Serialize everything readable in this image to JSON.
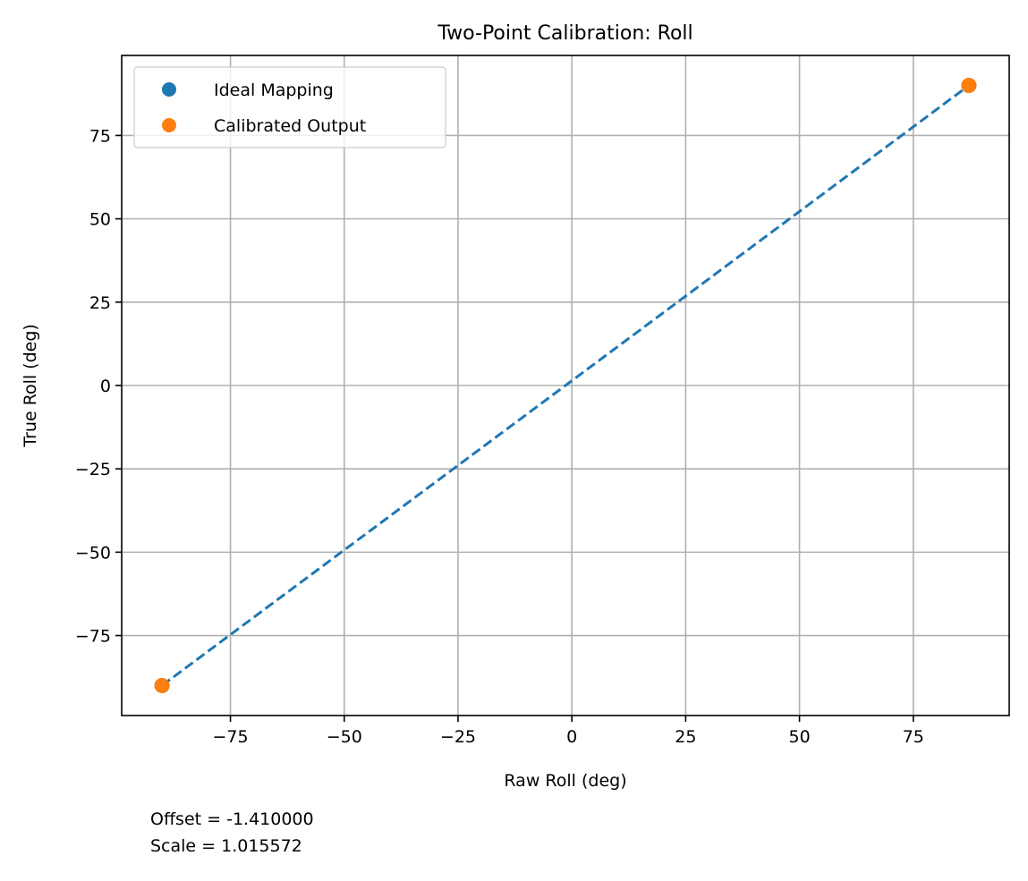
{
  "chart_data": {
    "type": "scatter",
    "title": "Two-Point Calibration: Roll",
    "xlabel": "Raw Roll (deg)",
    "ylabel": "True Roll (deg)",
    "xlim": [
      -98.89,
      96.07
    ],
    "ylim": [
      -99,
      99
    ],
    "xticks": [
      -75,
      -50,
      -25,
      0,
      25,
      50,
      75
    ],
    "yticks": [
      -75,
      -50,
      -25,
      0,
      25,
      50,
      75
    ],
    "xtick_labels": [
      "−75",
      "−50",
      "−25",
      "0",
      "25",
      "50",
      "75"
    ],
    "ytick_labels": [
      "−75",
      "−50",
      "−25",
      "0",
      "25",
      "50",
      "75"
    ],
    "grid": true,
    "legend_position": "top-left",
    "series": [
      {
        "name": "Ideal Mapping",
        "color": "#1f77b4",
        "x": [
          -90.03,
          87.21
        ],
        "y": [
          -90,
          90
        ],
        "line_style": "dashed"
      },
      {
        "name": "Calibrated Output",
        "color": "#ff7f0e",
        "x": [
          -90.03,
          87.21
        ],
        "y": [
          -90,
          90
        ]
      }
    ],
    "annotations": [
      "Offset = -1.410000",
      "Scale = 1.015572"
    ]
  }
}
